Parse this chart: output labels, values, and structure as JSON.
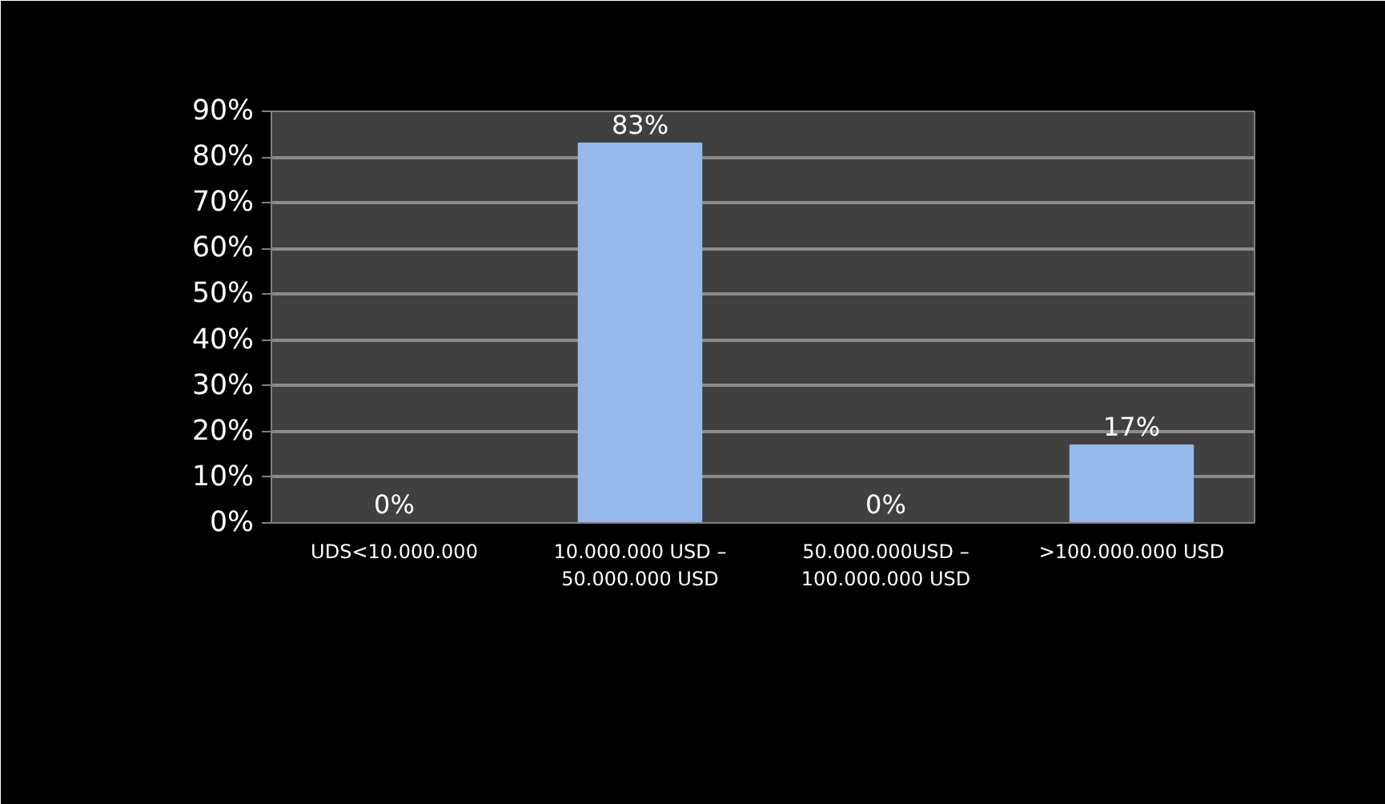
{
  "chart_data": {
    "type": "bar",
    "categories": [
      "UDS<10.000.000",
      "10.000.000 USD –\n50.000.000 USD",
      "50.000.000USD –\n100.000.000 USD",
      ">100.000.000 USD"
    ],
    "values": [
      0,
      83,
      0,
      17
    ],
    "color": "#95b9ea",
    "ylim": [
      0,
      90
    ],
    "yticks": [
      {
        "value": 0,
        "label": "0%"
      },
      {
        "value": 10,
        "label": "10%"
      },
      {
        "value": 20,
        "label": "20%"
      },
      {
        "value": 30,
        "label": "30%"
      },
      {
        "value": 40,
        "label": "40%"
      },
      {
        "value": 50,
        "label": "50%"
      },
      {
        "value": 60,
        "label": "60%"
      },
      {
        "value": 70,
        "label": "70%"
      },
      {
        "value": 80,
        "label": "80%"
      },
      {
        "value": 90,
        "label": "90%"
      }
    ],
    "value_labels": [
      "0%",
      "83%",
      "0%",
      "17%"
    ],
    "grid": "y"
  }
}
